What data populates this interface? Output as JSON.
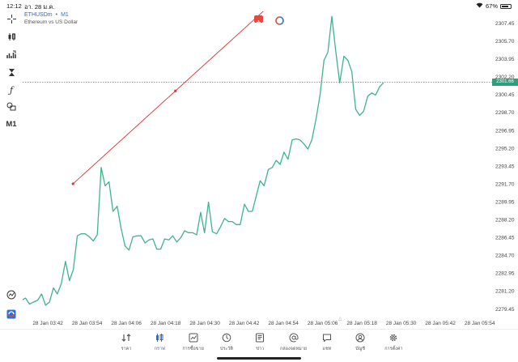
{
  "status": {
    "time": "12:12",
    "date": "อา. 28 ม.ค.",
    "battery_text": "67%",
    "battery_level": 0.67
  },
  "toolbar": {
    "items": [
      "crosshair-icon",
      "candles-icon",
      "indicators-icon",
      "period-icon",
      "function-icon",
      "objects-icon",
      "timeframe-m1"
    ],
    "timeframe_label": "M1"
  },
  "chart_header": {
    "symbol": "ETHUSDm",
    "separator": "•",
    "timeframe": "M1",
    "description": "Ethereum vs US Dollar"
  },
  "price_tag": "2301.66",
  "scroll_hint": "△",
  "chart_data": {
    "type": "line",
    "title": "",
    "xlabel": "",
    "ylabel": "",
    "ylim": [
      2278.6,
      2308.6
    ],
    "y_ticks": [
      2279.45,
      2281.2,
      2282.95,
      2284.7,
      2286.45,
      2288.2,
      2289.95,
      2291.7,
      2293.45,
      2295.2,
      2296.95,
      2298.7,
      2300.45,
      2302.2,
      2303.95,
      2305.7,
      2307.45
    ],
    "y_tick_labels": [
      "2279.45",
      "2281.20",
      "2282.95",
      "2284.70",
      "2286.45",
      "2288.20",
      "2289.95",
      "2291.70",
      "2293.45",
      "2295.20",
      "2296.95",
      "2298.70",
      "2300.45",
      "2302.20",
      "2303.95",
      "2305.70",
      "2307.45"
    ],
    "x_ticks": [
      "28 Jan 03:42",
      "28 Jan 03:54",
      "28 Jan 04:06",
      "28 Jan 04:18",
      "28 Jan 04:30",
      "28 Jan 04:42",
      "28 Jan 04:54",
      "28 Jan 05:06",
      "28 Jan 05:18",
      "28 Jan 05:30",
      "28 Jan 05:42",
      "28 Jan 05:54"
    ],
    "x_range_minutes": [
      -7.7,
      135.8
    ],
    "grid": false,
    "current_price": 2301.66,
    "series": [
      {
        "color": "#3fb48a",
        "x": [
          -8.0,
          -6.8,
          -5.6,
          -4.4,
          -3.1,
          -1.9,
          -0.7,
          0.5,
          1.7,
          2.9,
          4.1,
          5.4,
          6.6,
          7.8,
          9.0,
          10.2,
          11.4,
          12.7,
          13.9,
          15.1,
          16.3,
          17.5,
          18.7,
          19.9,
          21.2,
          22.4,
          23.6,
          24.8,
          26.0,
          27.2,
          28.5,
          29.7,
          30.9,
          32.1,
          33.3,
          34.5,
          35.7,
          37.0,
          38.2,
          39.4,
          40.6,
          41.8,
          43.0,
          44.3,
          45.5,
          46.7,
          47.9,
          49.1,
          50.3,
          51.6,
          52.8,
          54.0,
          55.2,
          56.4,
          57.6,
          58.8,
          60.1,
          61.3,
          62.5,
          63.7,
          64.9,
          66.1,
          67.4,
          68.6,
          69.8,
          71.0,
          72.2,
          73.4,
          74.7,
          75.9,
          77.1,
          78.3,
          79.5,
          80.7,
          82.0,
          83.2,
          84.4,
          85.6,
          86.8,
          88.0,
          89.2,
          90.5,
          91.7,
          92.9,
          94.1,
          95.3,
          96.5,
          97.8,
          99.0,
          100.2,
          101.4,
          102.6
        ],
        "values": [
          2280.3,
          2280.5,
          2279.9,
          2280.1,
          2280.3,
          2280.9,
          2279.8,
          2280.1,
          2281.5,
          2280.9,
          2281.9,
          2284.1,
          2282.2,
          2283.3,
          2286.6,
          2286.8,
          2286.8,
          2286.5,
          2286.1,
          2286.7,
          2293.3,
          2291.5,
          2291.9,
          2289.0,
          2289.5,
          2287.3,
          2285.6,
          2285.2,
          2286.5,
          2286.6,
          2286.6,
          2285.9,
          2286.2,
          2286.3,
          2285.3,
          2285.3,
          2286.3,
          2286.2,
          2286.6,
          2286.0,
          2286.4,
          2287.1,
          2286.9,
          2286.9,
          2286.7,
          2288.9,
          2286.9,
          2289.9,
          2287.0,
          2286.8,
          2287.5,
          2288.3,
          2288.0,
          2288.0,
          2287.7,
          2287.7,
          2289.7,
          2289.0,
          2289.0,
          2290.5,
          2292.0,
          2291.5,
          2293.1,
          2293.3,
          2294.0,
          2293.6,
          2294.8,
          2294.1,
          2296.0,
          2296.1,
          2296.0,
          2295.6,
          2295.1,
          2296.0,
          2298.1,
          2300.4,
          2303.8,
          2304.6,
          2308.1,
          2304.7,
          2301.6,
          2304.2,
          2303.8,
          2302.7,
          2299.0,
          2298.4,
          2298.8,
          2300.3,
          2300.6,
          2300.4,
          2301.2,
          2301.6
        ]
      }
    ],
    "trendline": {
      "color": "#e03030",
      "points": [
        [
          7.7,
          2291.7
        ],
        [
          39.0,
          2300.8
        ]
      ]
    },
    "current_price_line": {
      "color": "#3fb48a",
      "style": "dotted"
    }
  },
  "bottom_nav": {
    "items": [
      {
        "name": "quotes",
        "label": "ราคา",
        "icon": "quotes-icon",
        "active": false
      },
      {
        "name": "chart",
        "label": "กราฟ",
        "icon": "chart-icon",
        "active": true
      },
      {
        "name": "trade",
        "label": "การซื้อขาย",
        "icon": "trade-icon",
        "active": false
      },
      {
        "name": "history",
        "label": "ประวัติ",
        "icon": "history-icon",
        "active": false
      },
      {
        "name": "news",
        "label": "ข่าว",
        "icon": "news-icon",
        "active": false
      },
      {
        "name": "mailbox",
        "label": "กล่องจดหมาย",
        "icon": "mail-icon",
        "active": false
      },
      {
        "name": "chat",
        "label": "แชท",
        "icon": "chat-icon",
        "active": false
      },
      {
        "name": "account",
        "label": "บัญชี",
        "icon": "account-icon",
        "active": false
      },
      {
        "name": "settings",
        "label": "การตั้งค่า",
        "icon": "settings-icon",
        "active": false
      }
    ]
  },
  "colors": {
    "accent": "#2c6fdc",
    "series": "#3fb48a",
    "trendline": "#e03030",
    "sell": "#e7473c"
  }
}
